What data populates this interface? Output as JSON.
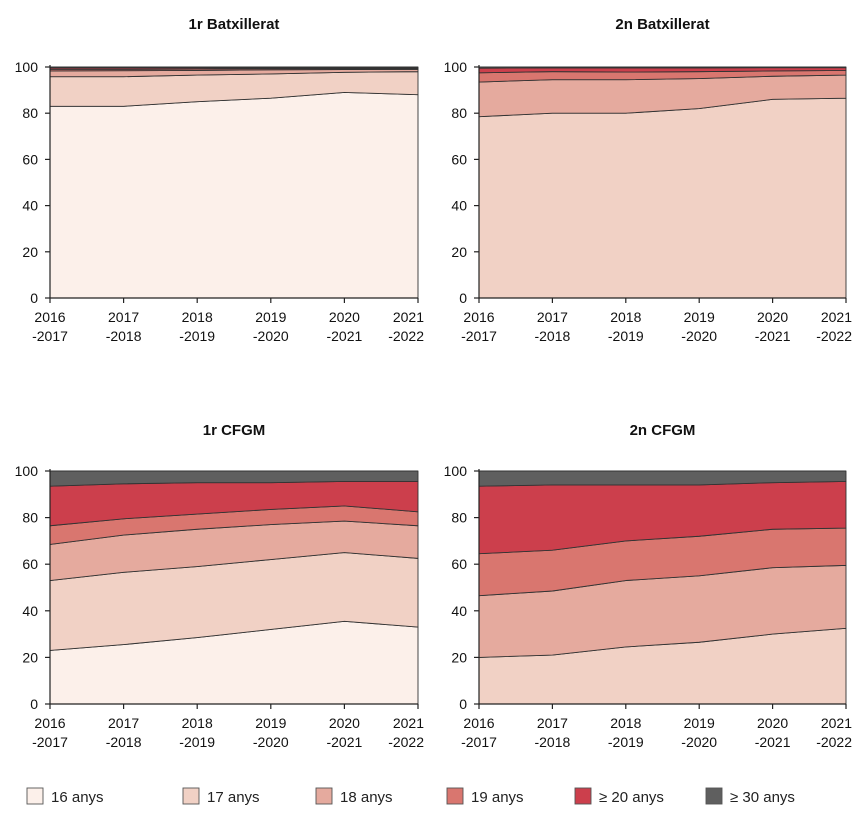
{
  "colors": {
    "axis": "#222222",
    "outline": "#333333"
  },
  "legend": [
    {
      "label": "16 anys",
      "color": "#fcf0ea"
    },
    {
      "label": "17 anys",
      "color": "#f1d1c5"
    },
    {
      "label": "18 anys",
      "color": "#e5aa9e"
    },
    {
      "label": "19 anys",
      "color": "#d9766f"
    },
    {
      "label": "≥ 20 anys",
      "color": "#cc3f4c"
    },
    {
      "label": "≥ 30 anys",
      "color": "#5f5f5f"
    }
  ],
  "chart_data": [
    {
      "type": "area",
      "stacked": true,
      "title": "1r Batxillerat",
      "categories": [
        "2016\n-2017",
        "2017\n-2018",
        "2018\n-2019",
        "2019\n-2020",
        "2020\n-2021",
        "2021\n-2022"
      ],
      "yticks": [
        "0",
        "20",
        "40",
        "60",
        "80",
        "100"
      ],
      "ylim": [
        0,
        100
      ],
      "series": [
        {
          "name": "16 anys",
          "values": [
            83.0,
            83.0,
            85.0,
            86.5,
            89.0,
            88.0
          ]
        },
        {
          "name": "17 anys",
          "values": [
            12.8,
            12.8,
            11.5,
            10.5,
            8.7,
            10.0
          ]
        },
        {
          "name": "18 anys",
          "values": [
            2.5,
            2.6,
            2.0,
            1.8,
            1.2,
            1.0
          ]
        },
        {
          "name": "19 anys",
          "values": [
            0.7,
            0.6,
            0.6,
            0.5,
            0.4,
            0.3
          ]
        },
        {
          "name": "≥ 20 anys",
          "values": [
            0.6,
            0.6,
            0.5,
            0.4,
            0.4,
            0.4
          ]
        },
        {
          "name": "≥ 30 anys",
          "values": [
            0.4,
            0.4,
            0.4,
            0.3,
            0.3,
            0.3
          ]
        }
      ]
    },
    {
      "type": "area",
      "stacked": true,
      "title": "2n Batxillerat",
      "categories": [
        "2016\n-2017",
        "2017\n-2018",
        "2018\n-2019",
        "2019\n-2020",
        "2020\n-2021",
        "2021\n-2022"
      ],
      "yticks": [
        "0",
        "20",
        "40",
        "60",
        "80",
        "100"
      ],
      "ylim": [
        0,
        100
      ],
      "series": [
        {
          "name": "16 anys",
          "values": [
            0,
            0,
            0,
            0,
            0,
            0
          ]
        },
        {
          "name": "17 anys",
          "values": [
            78.5,
            80.0,
            80.0,
            82.0,
            86.0,
            86.5
          ]
        },
        {
          "name": "18 anys",
          "values": [
            15.0,
            14.5,
            14.5,
            13.0,
            10.0,
            10.0
          ]
        },
        {
          "name": "19 anys",
          "values": [
            4.0,
            3.5,
            3.3,
            3.0,
            2.3,
            2.0
          ]
        },
        {
          "name": "≥ 20 anys",
          "values": [
            2.0,
            1.6,
            1.8,
            1.6,
            1.4,
            1.2
          ]
        },
        {
          "name": "≥ 30 anys",
          "values": [
            0.5,
            0.4,
            0.4,
            0.4,
            0.3,
            0.3
          ]
        }
      ]
    },
    {
      "type": "area",
      "stacked": true,
      "title": "1r CFGM",
      "categories": [
        "2016\n-2017",
        "2017\n-2018",
        "2018\n-2019",
        "2019\n-2020",
        "2020\n-2021",
        "2021\n-2022"
      ],
      "yticks": [
        "0",
        "20",
        "40",
        "60",
        "80",
        "100"
      ],
      "ylim": [
        0,
        100
      ],
      "series": [
        {
          "name": "16 anys",
          "values": [
            23.0,
            25.5,
            28.5,
            32.0,
            35.5,
            33.0
          ]
        },
        {
          "name": "17 anys",
          "values": [
            30.0,
            31.0,
            30.5,
            30.0,
            29.5,
            29.5
          ]
        },
        {
          "name": "18 anys",
          "values": [
            15.5,
            16.0,
            16.0,
            15.0,
            13.5,
            14.0
          ]
        },
        {
          "name": "19 anys",
          "values": [
            8.0,
            7.0,
            6.5,
            6.5,
            6.5,
            6.0
          ]
        },
        {
          "name": "≥ 20 anys",
          "values": [
            17.0,
            15.0,
            13.5,
            11.5,
            10.5,
            13.0
          ]
        },
        {
          "name": "≥ 30 anys",
          "values": [
            6.5,
            5.5,
            5.0,
            5.0,
            4.5,
            4.5
          ]
        }
      ]
    },
    {
      "type": "area",
      "stacked": true,
      "title": "2n CFGM",
      "categories": [
        "2016\n-2017",
        "2017\n-2018",
        "2018\n-2019",
        "2019\n-2020",
        "2020\n-2021",
        "2021\n-2022"
      ],
      "yticks": [
        "0",
        "20",
        "40",
        "60",
        "80",
        "100"
      ],
      "ylim": [
        0,
        100
      ],
      "series": [
        {
          "name": "16 anys",
          "values": [
            0,
            0,
            0,
            0,
            0,
            0
          ]
        },
        {
          "name": "17 anys",
          "values": [
            20.0,
            21.0,
            24.5,
            26.5,
            30.0,
            32.5
          ]
        },
        {
          "name": "18 anys",
          "values": [
            26.5,
            27.5,
            28.5,
            28.5,
            28.5,
            27.0
          ]
        },
        {
          "name": "19 anys",
          "values": [
            18.0,
            17.5,
            17.0,
            17.0,
            16.5,
            16.0
          ]
        },
        {
          "name": "≥ 20 anys",
          "values": [
            29.0,
            28.0,
            24.0,
            22.0,
            20.0,
            20.0
          ]
        },
        {
          "name": "≥ 30 anys",
          "values": [
            6.5,
            6.0,
            6.0,
            6.0,
            5.0,
            4.5
          ]
        }
      ]
    }
  ]
}
